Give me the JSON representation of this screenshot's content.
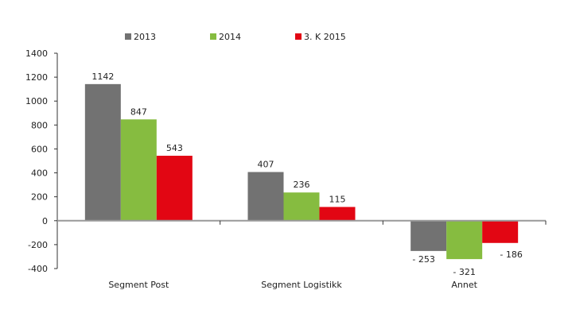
{
  "chart_data": {
    "type": "bar",
    "categories": [
      "Segment Post",
      "Segment Logistikk",
      "Annet"
    ],
    "series": [
      {
        "name": "2013",
        "values": [
          1142,
          407,
          -253
        ],
        "labels": [
          "1142",
          "407",
          "- 253"
        ],
        "color": "#727272"
      },
      {
        "name": "2014",
        "values": [
          847,
          236,
          -321
        ],
        "labels": [
          "847",
          "236",
          "- 321"
        ],
        "color": "#86bc40"
      },
      {
        "name": "3. K 2015",
        "values": [
          543,
          115,
          -186
        ],
        "labels": [
          "543",
          "115",
          "- 186"
        ],
        "color": "#e20613"
      }
    ],
    "title": "",
    "xlabel": "",
    "ylabel": "",
    "ylim": [
      -400,
      1400
    ],
    "yticks": [
      "1400",
      "1200",
      "1000",
      "800",
      "600",
      "400",
      "200",
      "0",
      "-200",
      "-400"
    ],
    "grid": false,
    "legend": "top"
  }
}
